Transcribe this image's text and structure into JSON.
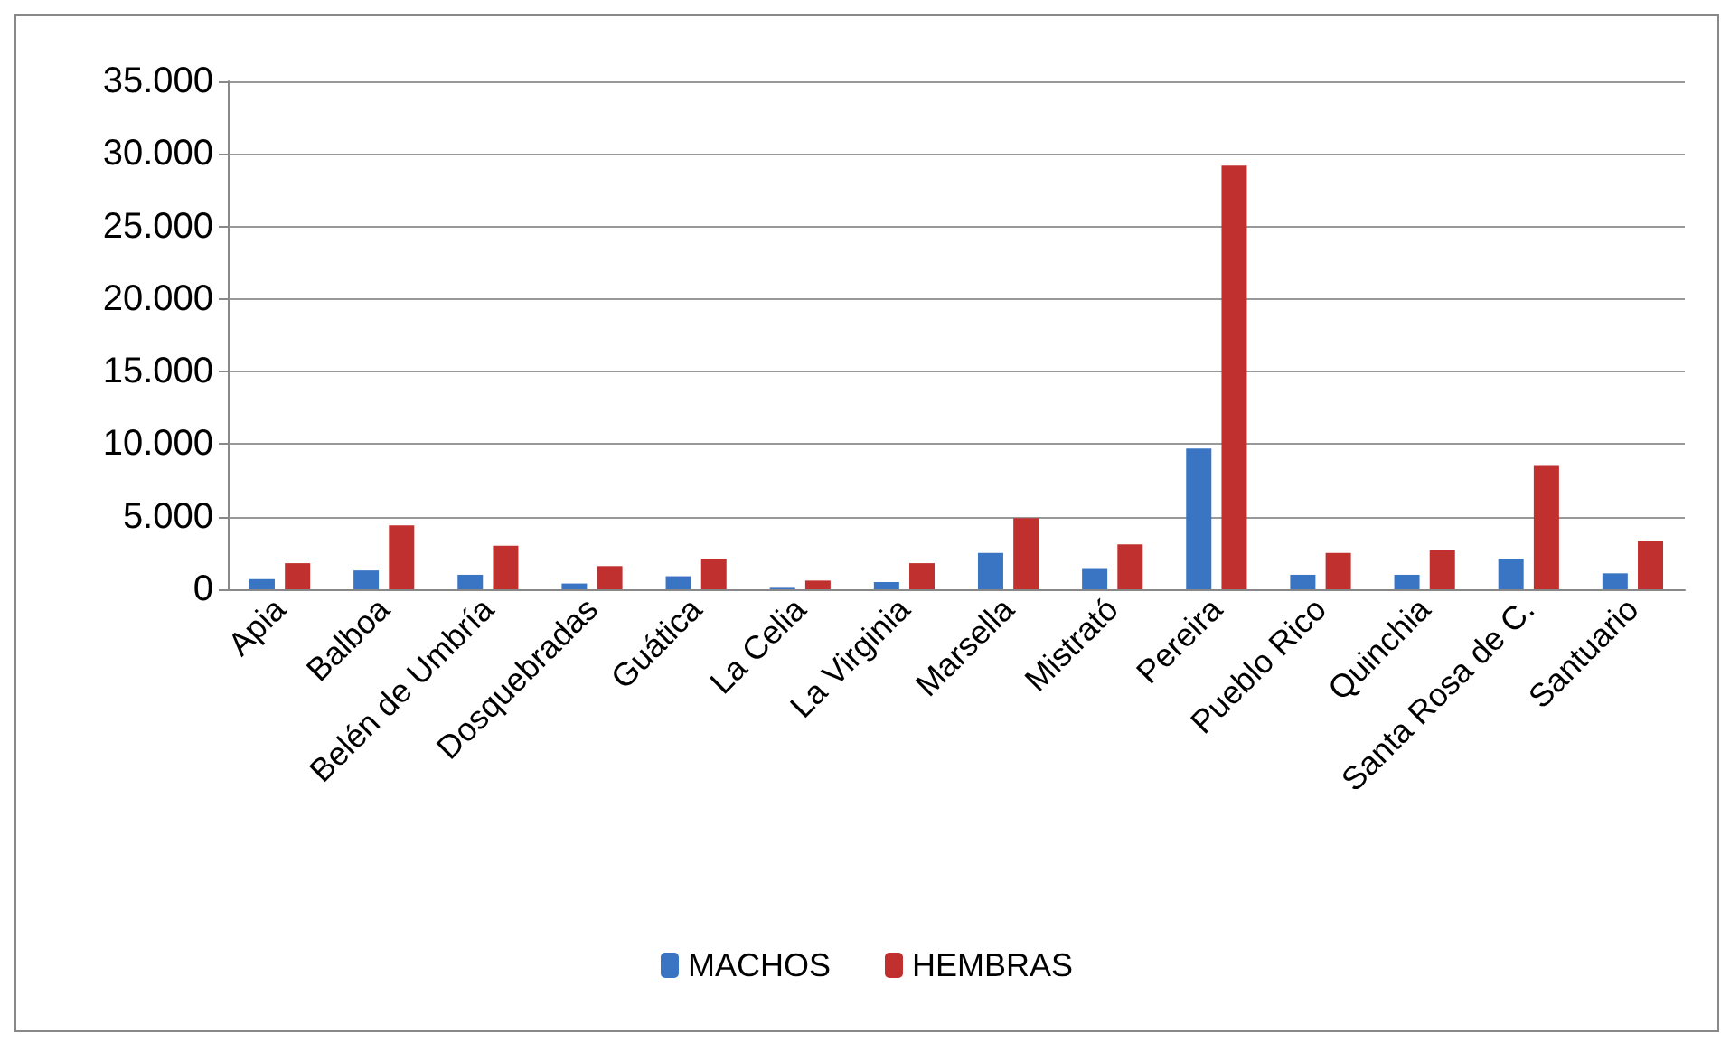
{
  "chart_data": {
    "type": "bar",
    "categories": [
      "Apia",
      "Balboa",
      "Belén de Umbría",
      "Dosquebradas",
      "Guática",
      "La Celia",
      "La Virginia",
      "Marsella",
      "Mistrató",
      "Pereira",
      "Pueblo Rico",
      "Quinchia",
      "Santa Rosa de C.",
      "Santuario"
    ],
    "series": [
      {
        "name": "MACHOS",
        "color": "#3a75c4",
        "values": [
          700,
          1300,
          1000,
          400,
          900,
          100,
          500,
          2500,
          1400,
          9700,
          1000,
          1000,
          2100,
          1100
        ]
      },
      {
        "name": "HEMBRAS",
        "color": "#c0302f",
        "values": [
          1800,
          4400,
          3000,
          1600,
          2100,
          600,
          1800,
          4900,
          3100,
          29200,
          2500,
          2700,
          8500,
          3300
        ]
      }
    ],
    "ylim": [
      0,
      35000
    ],
    "yticks": [
      {
        "value": 0,
        "label": "0"
      },
      {
        "value": 5000,
        "label": "5.000"
      },
      {
        "value": 10000,
        "label": "10.000"
      },
      {
        "value": 15000,
        "label": "15.000"
      },
      {
        "value": 20000,
        "label": "20.000"
      },
      {
        "value": 25000,
        "label": "25.000"
      },
      {
        "value": 30000,
        "label": "30.000"
      },
      {
        "value": 35000,
        "label": "35.000"
      }
    ],
    "grid": "y",
    "legend": "bottom"
  }
}
